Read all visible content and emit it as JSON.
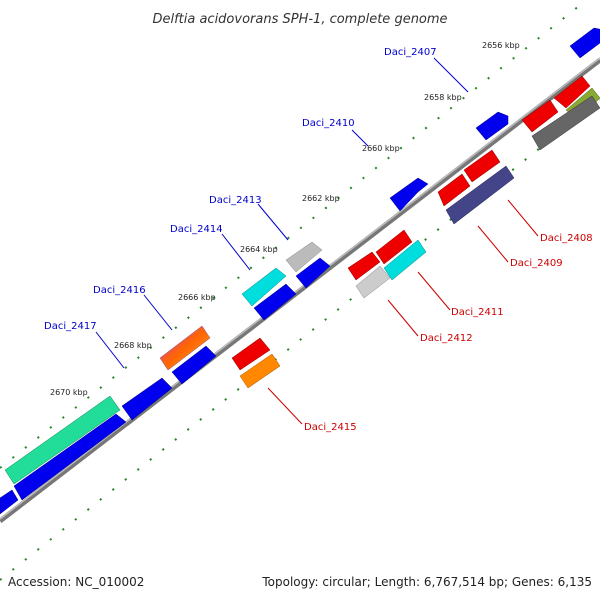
{
  "title": "Delftia acidovorans SPH-1, complete genome",
  "accession": "Accession: NC_010002",
  "summary": "Topology: circular; Length: 6,767,514 bp; Genes: 6,135",
  "colors": {
    "forward_label": "#0000cc",
    "reverse_label": "#cc0000",
    "backbone": "#888888",
    "tick": "#228822"
  },
  "kbp_ticks": [
    "2656 kbp",
    "2658 kbp",
    "2660 kbp",
    "2662 kbp",
    "2664 kbp",
    "2666 kbp",
    "2668 kbp",
    "2670 kbp"
  ],
  "forward_genes": [
    "Daci_2407",
    "Daci_2410",
    "Daci_2413",
    "Daci_2414",
    "Daci_2416",
    "Daci_2417"
  ],
  "reverse_genes": [
    "Daci_2408",
    "Daci_2409",
    "Daci_2411",
    "Daci_2412",
    "Daci_2415"
  ]
}
